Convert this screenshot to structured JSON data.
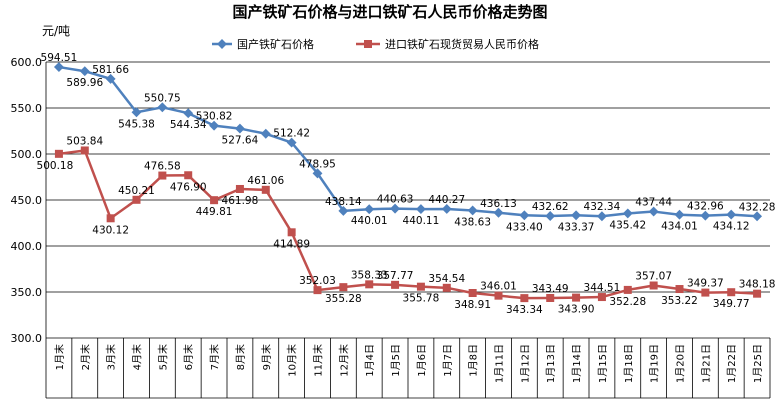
{
  "chart_data": {
    "type": "line",
    "title": "国产铁矿石价格与进口铁矿石人民币价格走势图",
    "ylabel": "元/吨",
    "xlabel": "",
    "ylim": [
      300,
      600
    ],
    "yticks": [
      "300.0",
      "350.0",
      "400.0",
      "450.0",
      "500.0",
      "550.0",
      "600.0"
    ],
    "ytick_values": [
      300,
      350,
      400,
      450,
      500,
      550,
      600
    ],
    "grid": true,
    "legend_position": "top",
    "categories": [
      "1月末",
      "2月末",
      "3月末",
      "4月末",
      "5月末",
      "6月末",
      "7月末",
      "8月末",
      "9月末",
      "10月末",
      "11月末",
      "12月末",
      "1月4日",
      "1月5日",
      "1月6日",
      "1月7日",
      "1月8日",
      "1月11日",
      "1月12日",
      "1月13日",
      "1月14日",
      "1月15日",
      "1月18日",
      "1月19日",
      "1月20日",
      "1月21日",
      "1月22日",
      "1月25日"
    ],
    "series": [
      {
        "name": "国产铁矿石价格",
        "color": "#4f81bd",
        "marker": "diamond",
        "values": [
          594.51,
          589.96,
          581.66,
          545.38,
          550.75,
          544.34,
          530.82,
          527.64,
          522.0,
          512.42,
          478.95,
          438.14,
          440.01,
          440.63,
          440.11,
          440.27,
          438.63,
          436.13,
          433.4,
          432.62,
          433.37,
          432.34,
          435.42,
          437.44,
          434.01,
          432.96,
          434.12,
          432.28
        ],
        "labels": [
          "594.51",
          "589.96",
          "581.66",
          "545.38",
          "550.75",
          "544.34",
          "530.82",
          "527.64",
          "",
          "512.42",
          "478.95",
          "438.14",
          "440.01",
          "440.63",
          "440.11",
          "440.27",
          "438.63",
          "436.13",
          "433.40",
          "432.62",
          "433.37",
          "432.34",
          "435.42",
          "437.44",
          "434.01",
          "432.96",
          "434.12",
          "432.28"
        ]
      },
      {
        "name": "进口铁矿石现货贸易人民币价格",
        "color": "#c0504d",
        "marker": "square",
        "values": [
          500.18,
          503.84,
          430.12,
          450.21,
          476.58,
          476.9,
          449.81,
          461.98,
          461.06,
          414.89,
          352.03,
          355.28,
          358.33,
          357.77,
          355.78,
          354.54,
          348.91,
          346.01,
          343.34,
          343.49,
          343.9,
          344.51,
          352.28,
          357.07,
          353.22,
          349.37,
          349.77,
          348.18
        ],
        "labels": [
          "500.18",
          "503.84",
          "430.12",
          "450.21",
          "476.58",
          "476.90",
          "449.81",
          "461.98",
          "461.06",
          "414.89",
          "352.03",
          "355.28",
          "358.33",
          "357.77",
          "355.78",
          "354.54",
          "348.91",
          "346.01",
          "343.34",
          "343.49",
          "343.90",
          "344.51",
          "352.28",
          "357.07",
          "353.22",
          "349.37",
          "349.77",
          "348.18"
        ]
      }
    ]
  }
}
